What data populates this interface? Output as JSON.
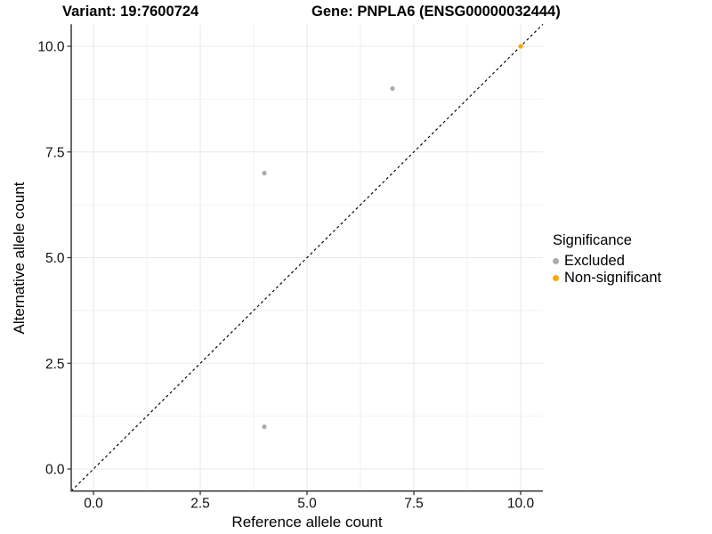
{
  "chart_data": {
    "type": "scatter",
    "titles": {
      "left": "Variant: 19:7600724",
      "right": "Gene: PNPLA6 (ENSG00000032444)"
    },
    "xlabel": "Reference allele count",
    "ylabel": "Alternative allele count",
    "xlim": [
      -0.52,
      10.52
    ],
    "ylim": [
      -0.52,
      10.52
    ],
    "x_ticks": {
      "values": [
        0,
        2.5,
        5,
        7.5,
        10
      ],
      "labels": [
        "0.0",
        "2.5",
        "5.0",
        "7.5",
        "10.0"
      ]
    },
    "y_ticks": {
      "values": [
        0,
        2.5,
        5,
        7.5,
        10
      ],
      "labels": [
        "0.0",
        "2.5",
        "5.0",
        "7.5",
        "10.0"
      ]
    },
    "minor_breaks": [
      1.25,
      3.75,
      6.25,
      8.75
    ],
    "grid": true,
    "identity_line": {
      "slope": 1,
      "intercept": 0,
      "style": "dashed",
      "color": "#000000"
    },
    "series": [
      {
        "name": "Excluded",
        "color": "#ACACAC",
        "points": [
          {
            "x": 4,
            "y": 1
          },
          {
            "x": 4,
            "y": 7
          },
          {
            "x": 7,
            "y": 9
          }
        ]
      },
      {
        "name": "Non-significant",
        "color": "#FFA500",
        "points": [
          {
            "x": 10,
            "y": 10
          }
        ]
      }
    ],
    "legend": {
      "title": "Significance",
      "position": "right"
    },
    "colors": {
      "grid_major": "#E9E9E9",
      "grid_minor": "#F2F2F2",
      "axis_line": "#3A3A3A",
      "tick_text": "#111111"
    }
  }
}
